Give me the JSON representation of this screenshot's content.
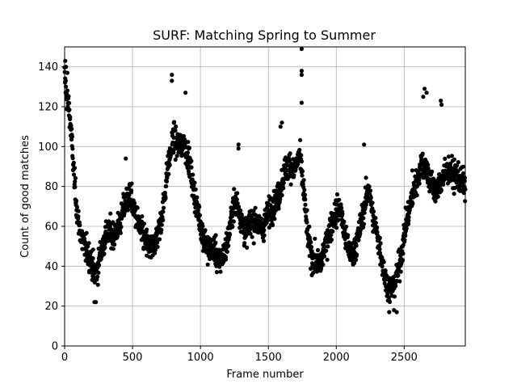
{
  "chart_data": {
    "type": "scatter",
    "title": "SURF: Matching Spring to Summer",
    "xlabel": "Frame number",
    "ylabel": "Count of good matches",
    "xlim": [
      0,
      2950
    ],
    "ylim": [
      0,
      150
    ],
    "xticks": [
      0,
      500,
      1000,
      1500,
      2000,
      2500
    ],
    "yticks": [
      0,
      20,
      40,
      60,
      80,
      100,
      120,
      140
    ],
    "grid": true,
    "marker_color": "#000000",
    "trend": [
      [
        0,
        135
      ],
      [
        15,
        125
      ],
      [
        35,
        118
      ],
      [
        55,
        100
      ],
      [
        75,
        80
      ],
      [
        100,
        62
      ],
      [
        130,
        53
      ],
      [
        160,
        48
      ],
      [
        190,
        44
      ],
      [
        220,
        36
      ],
      [
        240,
        38
      ],
      [
        270,
        48
      ],
      [
        300,
        55
      ],
      [
        330,
        57
      ],
      [
        360,
        56
      ],
      [
        400,
        60
      ],
      [
        440,
        70
      ],
      [
        480,
        76
      ],
      [
        520,
        66
      ],
      [
        560,
        58
      ],
      [
        600,
        52
      ],
      [
        640,
        48
      ],
      [
        680,
        55
      ],
      [
        720,
        66
      ],
      [
        760,
        90
      ],
      [
        800,
        104
      ],
      [
        840,
        100
      ],
      [
        880,
        102
      ],
      [
        920,
        92
      ],
      [
        950,
        78
      ],
      [
        980,
        68
      ],
      [
        1020,
        55
      ],
      [
        1060,
        48
      ],
      [
        1100,
        50
      ],
      [
        1130,
        42
      ],
      [
        1160,
        44
      ],
      [
        1200,
        52
      ],
      [
        1240,
        70
      ],
      [
        1270,
        72
      ],
      [
        1300,
        64
      ],
      [
        1330,
        56
      ],
      [
        1370,
        62
      ],
      [
        1410,
        63
      ],
      [
        1450,
        58
      ],
      [
        1490,
        65
      ],
      [
        1530,
        70
      ],
      [
        1570,
        74
      ],
      [
        1610,
        85
      ],
      [
        1650,
        92
      ],
      [
        1690,
        88
      ],
      [
        1730,
        96
      ],
      [
        1760,
        78
      ],
      [
        1790,
        55
      ],
      [
        1820,
        45
      ],
      [
        1850,
        42
      ],
      [
        1880,
        40
      ],
      [
        1910,
        48
      ],
      [
        1950,
        58
      ],
      [
        1990,
        66
      ],
      [
        2030,
        70
      ],
      [
        2060,
        56
      ],
      [
        2090,
        48
      ],
      [
        2120,
        46
      ],
      [
        2160,
        54
      ],
      [
        2200,
        68
      ],
      [
        2240,
        80
      ],
      [
        2270,
        64
      ],
      [
        2300,
        56
      ],
      [
        2330,
        46
      ],
      [
        2360,
        34
      ],
      [
        2390,
        28
      ],
      [
        2420,
        30
      ],
      [
        2450,
        36
      ],
      [
        2480,
        46
      ],
      [
        2510,
        60
      ],
      [
        2550,
        72
      ],
      [
        2590,
        82
      ],
      [
        2630,
        92
      ],
      [
        2660,
        90
      ],
      [
        2700,
        80
      ],
      [
        2740,
        78
      ],
      [
        2780,
        84
      ],
      [
        2820,
        88
      ],
      [
        2860,
        86
      ],
      [
        2900,
        84
      ],
      [
        2950,
        80
      ]
    ],
    "spread": 9,
    "spikes": [
      [
        5,
        143
      ],
      [
        10,
        140
      ],
      [
        20,
        137
      ],
      [
        1745,
        149
      ],
      [
        1745,
        138
      ],
      [
        1745,
        136
      ],
      [
        1745,
        122
      ],
      [
        790,
        136
      ],
      [
        790,
        133
      ],
      [
        890,
        127
      ],
      [
        2650,
        129
      ],
      [
        2665,
        127
      ],
      [
        2640,
        125
      ],
      [
        2770,
        123
      ],
      [
        2775,
        121
      ],
      [
        1280,
        101
      ],
      [
        1280,
        99
      ],
      [
        2205,
        101
      ],
      [
        220,
        22
      ],
      [
        230,
        22
      ],
      [
        2390,
        17
      ],
      [
        2445,
        17
      ],
      [
        2425,
        18
      ],
      [
        2560,
        88
      ],
      [
        2580,
        85
      ],
      [
        450,
        94
      ],
      [
        1590,
        110
      ],
      [
        1600,
        112
      ]
    ]
  }
}
